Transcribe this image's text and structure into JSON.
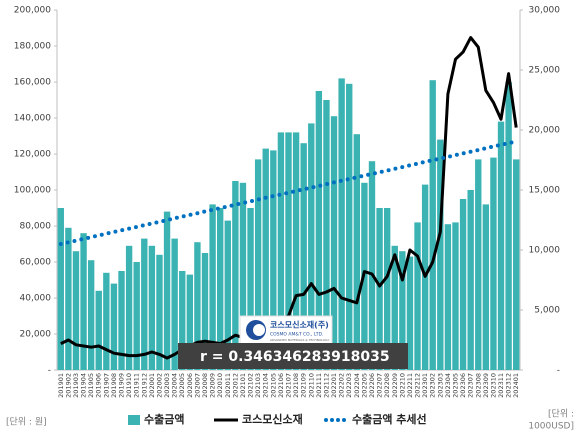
{
  "chart_data": {
    "type": "bar_line",
    "categories": [
      "201901",
      "201902",
      "201903",
      "201904",
      "201905",
      "201906",
      "201907",
      "201908",
      "201909",
      "201910",
      "201911",
      "201912",
      "202001",
      "202002",
      "202003",
      "202004",
      "202005",
      "202006",
      "202007",
      "202008",
      "202009",
      "202010",
      "202011",
      "202012",
      "202101",
      "202102",
      "202103",
      "202104",
      "202105",
      "202106",
      "202107",
      "202108",
      "202109",
      "202110",
      "202111",
      "202112",
      "202201",
      "202202",
      "202203",
      "202204",
      "202205",
      "202206",
      "202207",
      "202208",
      "202209",
      "202210",
      "202211",
      "202212",
      "202301",
      "202302",
      "202303",
      "202304",
      "202305",
      "202306",
      "202307",
      "202308",
      "202309",
      "202310",
      "202311",
      "202312",
      "202401"
    ],
    "series": [
      {
        "name": "수출금액",
        "color": "#3bb3b3",
        "kind": "bar",
        "values": [
          90000,
          79000,
          66000,
          76000,
          61000,
          44000,
          54000,
          48000,
          55000,
          69000,
          60000,
          73000,
          69000,
          64000,
          88000,
          73000,
          55000,
          53000,
          71000,
          65000,
          92000,
          90000,
          83000,
          105000,
          104000,
          90000,
          117000,
          123000,
          122000,
          132000,
          132000,
          132000,
          126000,
          137000,
          155000,
          150000,
          141000,
          162000,
          159000,
          131000,
          104000,
          116000,
          90000,
          90000,
          69000,
          66000,
          63000,
          82000,
          103000,
          161000,
          128000,
          81000,
          82000,
          95000,
          100000,
          117000,
          92000,
          118000,
          138000,
          160000,
          117000
        ]
      },
      {
        "name": "코스모신소재",
        "color": "#000000",
        "kind": "line",
        "axis": "y2",
        "values": [
          2200,
          2500,
          2100,
          2000,
          1900,
          2000,
          1700,
          1400,
          1300,
          1200,
          1200,
          1300,
          1500,
          1300,
          1000,
          1300,
          1700,
          2000,
          2300,
          2400,
          2300,
          2200,
          2500,
          2900,
          2700,
          3000,
          3300,
          3000,
          3800,
          4200,
          4500,
          6200,
          6300,
          7200,
          6300,
          6500,
          6800,
          6000,
          5800,
          5600,
          8200,
          8000,
          7000,
          7800,
          9600,
          7500,
          10000,
          9500,
          7800,
          9000,
          11500,
          23000,
          25900,
          26500,
          27700,
          26900,
          23300,
          22300,
          20900,
          24700,
          20200
        ]
      },
      {
        "name": "수출금액 추세선",
        "color": "#0070c0",
        "kind": "dotted",
        "values": [
          70000,
          70950,
          71900,
          72850,
          73800,
          74750,
          75700,
          76650,
          77600,
          78550,
          79500,
          80450,
          81400,
          82350,
          83300,
          84250,
          85200,
          86150,
          87100,
          88050,
          89000,
          89950,
          90900,
          91850,
          92800,
          93750,
          94700,
          95650,
          96600,
          97550,
          98500,
          99450,
          100400,
          101350,
          102300,
          103250,
          104200,
          105150,
          106100,
          107050,
          108000,
          108950,
          109900,
          110850,
          111800,
          112750,
          113700,
          114650,
          115600,
          116550,
          117500,
          118450,
          119400,
          120350,
          121300,
          122250,
          123200,
          124150,
          125100,
          126050,
          127000
        ]
      }
    ],
    "ylim": [
      0,
      200000
    ],
    "yticks": [
      {
        "value": 0,
        "label": "-"
      },
      {
        "value": 20000,
        "label": "20,000"
      },
      {
        "value": 40000,
        "label": "40,000"
      },
      {
        "value": 60000,
        "label": "60,000"
      },
      {
        "value": 80000,
        "label": "80,000"
      },
      {
        "value": 100000,
        "label": "100,000"
      },
      {
        "value": 120000,
        "label": "120,000"
      },
      {
        "value": 140000,
        "label": "140,000"
      },
      {
        "value": 160000,
        "label": "160,000"
      },
      {
        "value": 180000,
        "label": "180,000"
      },
      {
        "value": 200000,
        "label": "200,000"
      }
    ],
    "y2lim": [
      0,
      30000
    ],
    "y2ticks": [
      {
        "value": 0,
        "label": "-"
      },
      {
        "value": 5000,
        "label": "5,000"
      },
      {
        "value": 10000,
        "label": "10,000"
      },
      {
        "value": 15000,
        "label": "15,000"
      },
      {
        "value": 20000,
        "label": "20,000"
      },
      {
        "value": 25000,
        "label": "25,000"
      },
      {
        "value": 30000,
        "label": "30,000"
      }
    ],
    "annotation": "r = 0.346346283918035",
    "logo": {
      "name": "코스모신소재(주)",
      "company": "COSMO AM&T CO., LTD.",
      "tagline": "ADVANCED MATERIALS & TECHNOLOGY"
    },
    "left_unit": "[단위 : 원]",
    "right_unit": [
      "[단위 :",
      "1000USD]"
    ]
  }
}
